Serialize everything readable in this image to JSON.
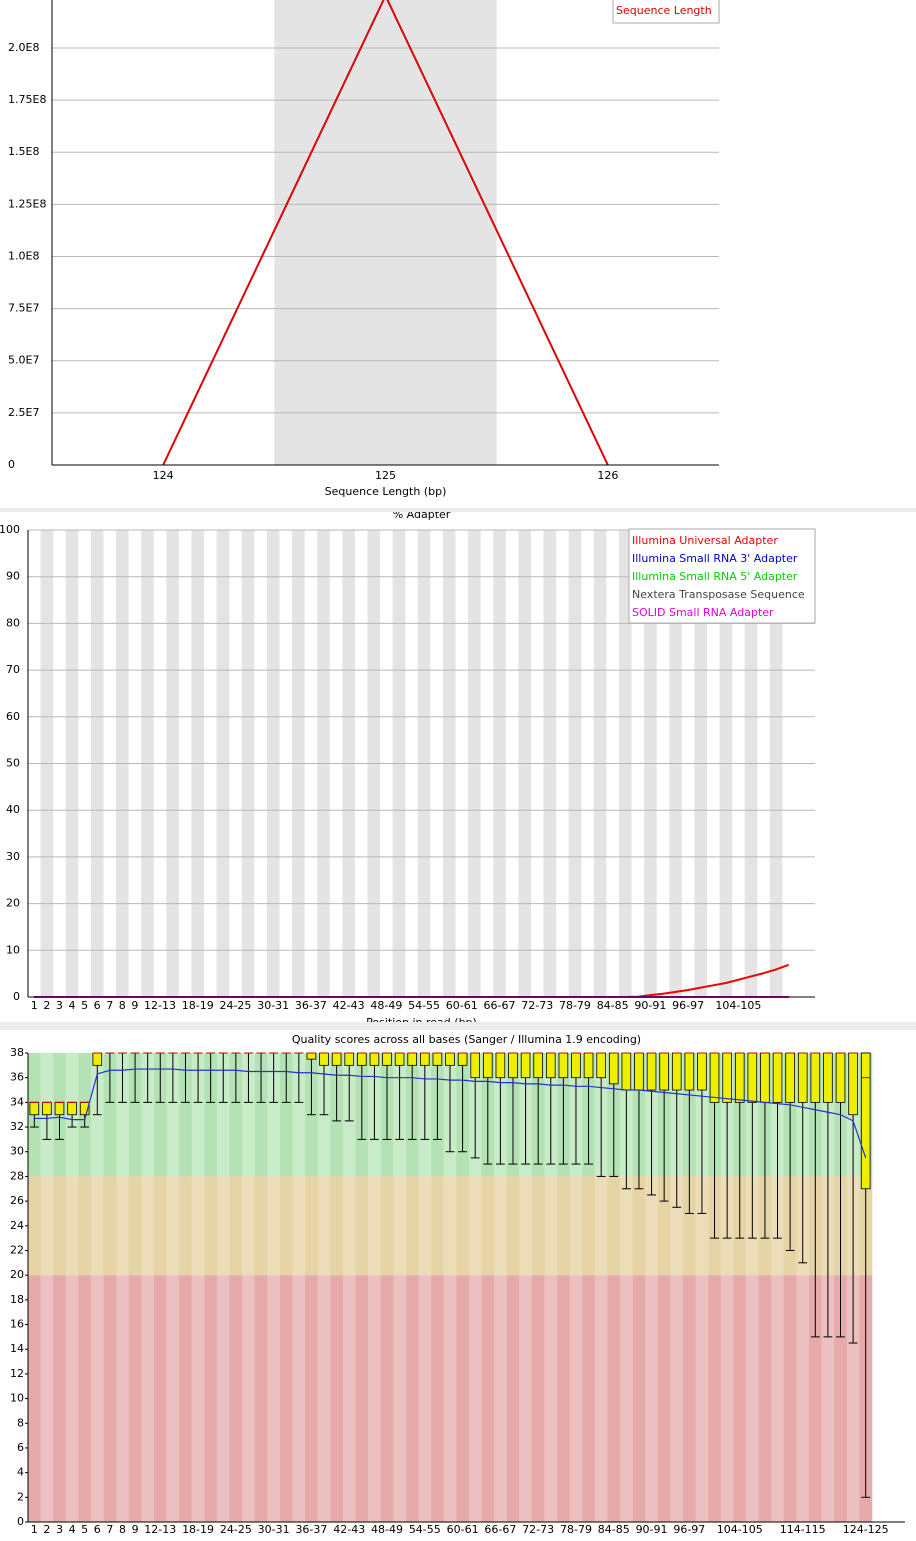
{
  "chart_data": [
    {
      "type": "line",
      "x_label": "Sequence Length (bp)",
      "categories": [
        "124",
        "125",
        "126"
      ],
      "series": [
        {
          "name": "Sequence Length",
          "color": "#dd0000",
          "values": [
            0,
            225000000,
            0
          ]
        }
      ],
      "ylim": [
        0,
        223000000
      ],
      "yticks": [
        0,
        {
          "value": 25000000,
          "label": "2.5E7"
        },
        {
          "value": 50000000,
          "label": "5.0E7"
        },
        {
          "value": 75000000,
          "label": "7.5E7"
        },
        {
          "value": 100000000,
          "label": "1.0E8"
        },
        {
          "value": 125000000,
          "label": "1.25E8"
        },
        {
          "value": 150000000,
          "label": "1.5E8"
        },
        {
          "value": 175000000,
          "label": "1.75E8"
        },
        {
          "value": 200000000,
          "label": "2.0E8"
        }
      ],
      "grid": true,
      "stripes": "#e4e4e4",
      "legend": "top-right"
    },
    {
      "type": "line",
      "title": "% Adapter",
      "x_label": "Position in read (bp)",
      "categories": [
        "1",
        "2",
        "3",
        "4",
        "5",
        "6",
        "7",
        "8",
        "9",
        null,
        "12-13",
        null,
        null,
        "18-19",
        null,
        null,
        "24-25",
        null,
        null,
        "30-31",
        null,
        null,
        "36-37",
        null,
        null,
        "42-43",
        null,
        null,
        "48-49",
        null,
        null,
        "54-55",
        null,
        null,
        "60-61",
        null,
        null,
        "66-67",
        null,
        null,
        "72-73",
        null,
        null,
        "78-79",
        null,
        null,
        "84-85",
        null,
        null,
        "90-91",
        null,
        null,
        "96-97",
        null,
        null,
        null,
        "104-105",
        null,
        null,
        null,
        null
      ],
      "series": [
        {
          "name": "Illumina Universal Adapter",
          "color": "#ee0000",
          "values": [
            0,
            0,
            0,
            0,
            0,
            0,
            0,
            0,
            0,
            0,
            0,
            0,
            0,
            0,
            0,
            0,
            0,
            0,
            0,
            0,
            0,
            0,
            0,
            0,
            0,
            0,
            0,
            0,
            0,
            0,
            0,
            0,
            0,
            0,
            0,
            0,
            0,
            0,
            0,
            0,
            0,
            0,
            0,
            0,
            0,
            0,
            0,
            0,
            0.05,
            0.4,
            0.7,
            1.1,
            1.5,
            2.0,
            2.5,
            3.0,
            3.7,
            4.4,
            5.1,
            5.9,
            6.9
          ]
        },
        {
          "name": "Illumina Small RNA 3' Adapter",
          "color": "#0000cc",
          "values": [
            0,
            0,
            0,
            0,
            0,
            0,
            0,
            0,
            0,
            0,
            0,
            0,
            0,
            0,
            0,
            0,
            0,
            0,
            0,
            0,
            0,
            0,
            0,
            0,
            0,
            0,
            0,
            0,
            0,
            0,
            0,
            0,
            0,
            0,
            0,
            0,
            0,
            0,
            0,
            0,
            0,
            0,
            0,
            0,
            0,
            0,
            0,
            0,
            0,
            0,
            0,
            0,
            0,
            0,
            0,
            0,
            0,
            0,
            0,
            0,
            0
          ]
        },
        {
          "name": "Illumina Small RNA 5' Adapter",
          "color": "#00cc00",
          "values": [
            0,
            0,
            0,
            0,
            0,
            0,
            0,
            0,
            0,
            0,
            0,
            0,
            0,
            0,
            0,
            0,
            0,
            0,
            0,
            0,
            0,
            0,
            0,
            0,
            0,
            0,
            0,
            0,
            0,
            0,
            0,
            0,
            0,
            0,
            0,
            0,
            0,
            0,
            0,
            0,
            0,
            0,
            0,
            0,
            0,
            0,
            0,
            0,
            0,
            0,
            0,
            0,
            0,
            0,
            0,
            0,
            0,
            0,
            0,
            0,
            0
          ]
        },
        {
          "name": "Nextera Transposase Sequence",
          "color": "#444444",
          "values": [
            0,
            0,
            0,
            0,
            0,
            0,
            0,
            0,
            0,
            0,
            0,
            0,
            0,
            0,
            0,
            0,
            0,
            0,
            0,
            0,
            0,
            0,
            0,
            0,
            0,
            0,
            0,
            0,
            0,
            0,
            0,
            0,
            0,
            0,
            0,
            0,
            0,
            0,
            0,
            0,
            0,
            0,
            0,
            0,
            0,
            0,
            0,
            0,
            0,
            0,
            0,
            0,
            0,
            0,
            0,
            0,
            0,
            0,
            0,
            0,
            0
          ]
        },
        {
          "name": "SOLID Small RNA Adapter",
          "color": "#dd00dd",
          "values": [
            0,
            0,
            0,
            0,
            0,
            0,
            0,
            0,
            0,
            0,
            0,
            0,
            0,
            0,
            0,
            0,
            0,
            0,
            0,
            0,
            0,
            0,
            0,
            0,
            0,
            0,
            0,
            0,
            0,
            0,
            0,
            0,
            0,
            0,
            0,
            0,
            0,
            0,
            0,
            0,
            0,
            0,
            0,
            0,
            0,
            0,
            0,
            0,
            0,
            0,
            0,
            0,
            0,
            0,
            0,
            0,
            0,
            0,
            0,
            0,
            0
          ]
        }
      ],
      "ylim": [
        0,
        100
      ],
      "yticks": [
        0,
        10,
        20,
        30,
        40,
        50,
        60,
        70,
        80,
        90,
        100
      ],
      "grid": true,
      "stripes": "#e4e4e4",
      "legend": "top-right"
    },
    {
      "type": "box",
      "title": "Quality scores across all bases (Sanger / Illumina 1.9 encoding)",
      "categories": [
        "1",
        "2",
        "3",
        "4",
        "5",
        "6",
        "7",
        "8",
        "9",
        null,
        "12-13",
        null,
        null,
        "18-19",
        null,
        null,
        "24-25",
        null,
        null,
        "30-31",
        null,
        null,
        "36-37",
        null,
        null,
        "42-43",
        null,
        null,
        "48-49",
        null,
        null,
        "54-55",
        null,
        null,
        "60-61",
        null,
        null,
        "66-67",
        null,
        null,
        "72-73",
        null,
        null,
        "78-79",
        null,
        null,
        "84-85",
        null,
        null,
        "90-91",
        null,
        null,
        "96-97",
        null,
        null,
        null,
        "104-105",
        null,
        null,
        null,
        null,
        "114-115",
        null,
        null,
        null,
        null,
        "124-125"
      ],
      "low": [
        32,
        31,
        31,
        32,
        32,
        33,
        34,
        34,
        34,
        34,
        34,
        34,
        34,
        34,
        34,
        34,
        34,
        34,
        34,
        34,
        34,
        34,
        33,
        33,
        32.5,
        32.5,
        31,
        31,
        31,
        31,
        31,
        31,
        31,
        30,
        30,
        29.5,
        29,
        29,
        29,
        29,
        29,
        29,
        29,
        29,
        29,
        28,
        28,
        27,
        27,
        26.5,
        26,
        25.5,
        25,
        25,
        23,
        23,
        23,
        23,
        23,
        23,
        22,
        21,
        15,
        15,
        15,
        14.5,
        2
      ],
      "q1": [
        33,
        33,
        33,
        33,
        33,
        37,
        38,
        38,
        38,
        38,
        38,
        38,
        38,
        38,
        38,
        38,
        38,
        38,
        38,
        38,
        38,
        38,
        37.5,
        37,
        37,
        37,
        37,
        37,
        37,
        37,
        37,
        37,
        37,
        37,
        37,
        36,
        36,
        36,
        36,
        36,
        36,
        36,
        36,
        36,
        36,
        36,
        35.5,
        35,
        35,
        35,
        35,
        35,
        35,
        35,
        34,
        34,
        34,
        34,
        34,
        34,
        34,
        34,
        34,
        34,
        34,
        33,
        27
      ],
      "median": [
        34,
        34,
        34,
        34,
        34,
        38,
        38,
        38,
        38,
        38,
        38,
        38,
        38,
        38,
        38,
        38,
        38,
        38,
        38,
        38,
        38,
        38,
        38,
        38,
        38,
        38,
        38,
        38,
        38,
        38,
        38,
        38,
        38,
        38,
        38,
        38,
        38,
        38,
        38,
        38,
        38,
        38,
        38,
        38,
        38,
        38,
        38,
        38,
        38,
        38,
        38,
        38,
        38,
        38,
        38,
        38,
        38,
        38,
        38,
        38,
        38,
        38,
        38,
        38,
        38,
        38,
        36
      ],
      "q3": [
        34,
        34,
        34,
        34,
        34,
        38,
        38,
        38,
        38,
        38,
        38,
        38,
        38,
        38,
        38,
        38,
        38,
        38,
        38,
        38,
        38,
        38,
        38,
        38,
        38,
        38,
        38,
        38,
        38,
        38,
        38,
        38,
        38,
        38,
        38,
        38,
        38,
        38,
        38,
        38,
        38,
        38,
        38,
        38,
        38,
        38,
        38,
        38,
        38,
        38,
        38,
        38,
        38,
        38,
        38,
        38,
        38,
        38,
        38,
        38,
        38,
        38,
        38,
        38,
        38,
        38,
        38
      ],
      "high": [
        34,
        34,
        34,
        34,
        34,
        38,
        38,
        38,
        38,
        38,
        38,
        38,
        38,
        38,
        38,
        38,
        38,
        38,
        38,
        38,
        38,
        38,
        38,
        38,
        38,
        38,
        38,
        38,
        38,
        38,
        38,
        38,
        38,
        38,
        38,
        38,
        38,
        38,
        38,
        38,
        38,
        38,
        38,
        38,
        38,
        38,
        38,
        38,
        38,
        38,
        38,
        38,
        38,
        38,
        38,
        38,
        38,
        38,
        38,
        38,
        38,
        38,
        38,
        38,
        38,
        38,
        38
      ],
      "mean": {
        "color": "#2233cc",
        "values": [
          32.7,
          32.7,
          32.8,
          32.6,
          32.6,
          36.3,
          36.6,
          36.6,
          36.7,
          36.7,
          36.7,
          36.7,
          36.6,
          36.6,
          36.6,
          36.6,
          36.6,
          36.5,
          36.5,
          36.5,
          36.5,
          36.4,
          36.4,
          36.3,
          36.2,
          36.2,
          36.1,
          36.1,
          36.0,
          36.0,
          36.0,
          35.9,
          35.9,
          35.8,
          35.8,
          35.7,
          35.7,
          35.6,
          35.6,
          35.5,
          35.5,
          35.4,
          35.4,
          35.3,
          35.3,
          35.2,
          35.1,
          35.0,
          35.0,
          34.9,
          34.8,
          34.7,
          34.6,
          34.5,
          34.4,
          34.3,
          34.2,
          34.1,
          34.0,
          33.9,
          33.8,
          33.6,
          33.4,
          33.2,
          33.0,
          32.5,
          29.5
        ]
      },
      "box_color": "#eeee00",
      "median_color": "#cc0000",
      "zones": [
        {
          "from": 28,
          "to": 38,
          "colors": [
            "#b4e2b4",
            "#c8ecc8"
          ]
        },
        {
          "from": 20,
          "to": 28,
          "colors": [
            "#e6d4a6",
            "#ecdcb8"
          ]
        },
        {
          "from": 0,
          "to": 20,
          "colors": [
            "#e6aaaa",
            "#ecc0c0"
          ]
        }
      ],
      "ylim": [
        0,
        38
      ],
      "yticks": [
        0,
        2,
        4,
        6,
        8,
        10,
        12,
        14,
        16,
        18,
        20,
        22,
        24,
        26,
        28,
        30,
        32,
        34,
        36,
        38
      ],
      "grid": false
    }
  ]
}
